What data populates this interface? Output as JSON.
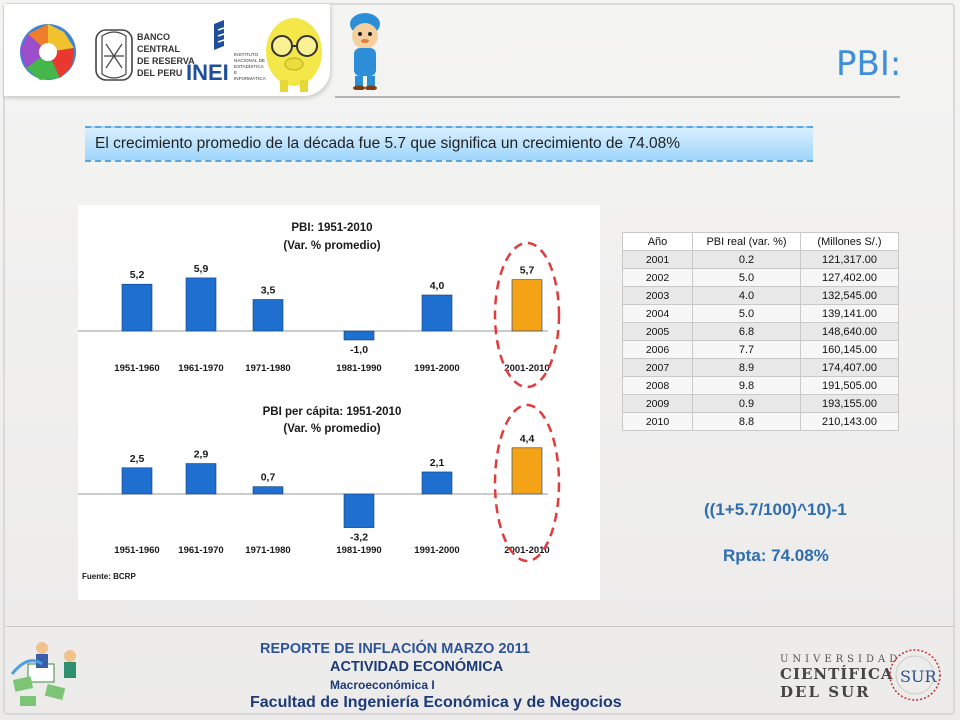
{
  "header": {
    "title": "PBI:",
    "logos": {
      "bcrp_text": [
        "BANCO",
        "CENTRAL",
        "DE RESERVA",
        "DEL PERU"
      ],
      "inei_text": "INEI",
      "inei_sub": [
        "INSTITUTO",
        "NACIONAL DE",
        "ESTADÍSTICA",
        "E",
        "INFORMÁTICA"
      ]
    }
  },
  "summary": {
    "text": "El crecimiento promedio de la década fue  5.7 que significa un crecimiento de 74.08%"
  },
  "chart_data": [
    {
      "type": "bar",
      "title": "PBI: 1951-2010",
      "subtitle": "(Var. % promedio)",
      "categories": [
        "1951-1960",
        "1961-1970",
        "1971-1980",
        "1981-1990",
        "1991-2000",
        "2001-2010"
      ],
      "values": [
        5.2,
        5.9,
        3.5,
        -1.0,
        4.0,
        5.7
      ],
      "value_labels": [
        "5,2",
        "5,9",
        "3,5",
        "-1,0",
        "4,0",
        "5,7"
      ],
      "colors": [
        "#1f6fd0",
        "#1f6fd0",
        "#1f6fd0",
        "#1f6fd0",
        "#1f6fd0",
        "#f5a316"
      ],
      "highlight_color": "#e23b3b",
      "ylim": [
        -1.5,
        6.5
      ]
    },
    {
      "type": "bar",
      "title": "PBI per cápita: 1951-2010",
      "subtitle": "(Var. % promedio)",
      "categories": [
        "1951-1960",
        "1961-1970",
        "1971-1980",
        "1981-1990",
        "1991-2000",
        "2001-2010"
      ],
      "values": [
        2.5,
        2.9,
        0.7,
        -3.2,
        2.1,
        4.4
      ],
      "value_labels": [
        "2,5",
        "2,9",
        "0,7",
        "-3,2",
        "2,1",
        "4,4"
      ],
      "colors": [
        "#1f6fd0",
        "#1f6fd0",
        "#1f6fd0",
        "#1f6fd0",
        "#1f6fd0",
        "#f5a316"
      ],
      "highlight_color": "#e23b3b",
      "ylim": [
        -3.6,
        5.0
      ],
      "source": "Fuente: BCRP"
    },
    {
      "type": "table",
      "columns": [
        "Año",
        "PBI real (var. %)",
        "(Millones S/.)"
      ],
      "rows": [
        [
          "2001",
          "0.2",
          "121,317.00"
        ],
        [
          "2002",
          "5.0",
          "127,402.00"
        ],
        [
          "2003",
          "4.0",
          "132,545.00"
        ],
        [
          "2004",
          "5.0",
          "139,141.00"
        ],
        [
          "2005",
          "6.8",
          "148,640.00"
        ],
        [
          "2006",
          "7.7",
          "160,145.00"
        ],
        [
          "2007",
          "8.9",
          "174,407.00"
        ],
        [
          "2008",
          "9.8",
          "191,505.00"
        ],
        [
          "2009",
          "0.9",
          "193,155.00"
        ],
        [
          "2010",
          "8.8",
          "210,143.00"
        ]
      ]
    }
  ],
  "formula": {
    "expression": "((1+5.7/100)^10)-1",
    "answer": "Rpta: 74.08%"
  },
  "footer": {
    "line1": "REPORTE DE INFLACIÓN MARZO 2011",
    "line2": "ACTIVIDAD ECONÓMICA",
    "line3": "Macroeconómica I",
    "line4": "Facultad de Ingeniería Económica y de Negocios",
    "university": [
      "UNIVERSIDAD",
      "CIENTÍFICA",
      "DEL SUR"
    ],
    "seal_text": "SUR"
  }
}
